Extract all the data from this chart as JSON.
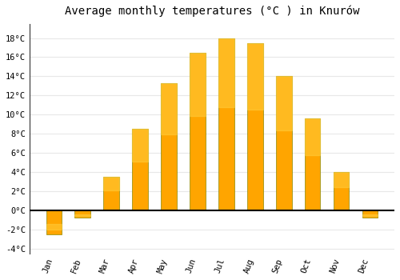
{
  "title": "Average monthly temperatures (°C ) in Knurów",
  "months": [
    "Jan",
    "Feb",
    "Mar",
    "Apr",
    "May",
    "Jun",
    "Jul",
    "Aug",
    "Sep",
    "Oct",
    "Nov",
    "Dec"
  ],
  "values": [
    -2.5,
    -0.7,
    3.5,
    8.5,
    13.3,
    16.5,
    18.0,
    17.5,
    14.0,
    9.6,
    4.0,
    -0.7
  ],
  "bar_color_top": "#FFB300",
  "bar_color_bottom": "#FF8C00",
  "bar_edge_color": "#888800",
  "background_color": "#ffffff",
  "grid_color": "#e8e8e8",
  "zero_line_color": "#000000",
  "ylim": [
    -4.5,
    19.5
  ],
  "yticks": [
    -4,
    -2,
    0,
    2,
    4,
    6,
    8,
    10,
    12,
    14,
    16,
    18
  ],
  "title_fontsize": 10,
  "tick_fontsize": 7.5,
  "bar_width": 0.55,
  "figsize": [
    5.0,
    3.5
  ],
  "dpi": 100
}
